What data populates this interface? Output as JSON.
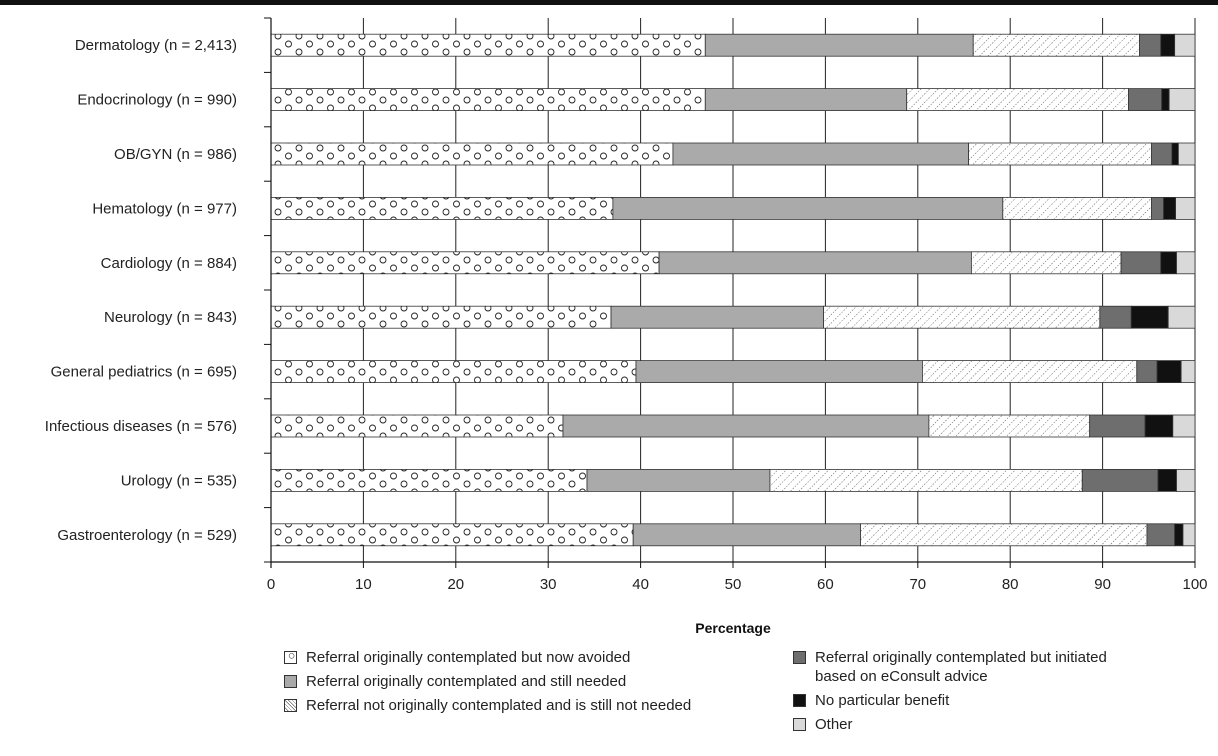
{
  "chart_data": {
    "type": "bar",
    "orientation": "horizontal",
    "stacked": true,
    "title": "",
    "xlabel": "Percentage",
    "ylabel": "",
    "xlim": [
      0,
      100
    ],
    "xticks": [
      0,
      10,
      20,
      30,
      40,
      50,
      60,
      70,
      80,
      90,
      100
    ],
    "grid": true,
    "legend_position": "bottom",
    "categories": [
      "Dermatology (n = 2,413)",
      "Endocrinology (n = 990)",
      "OB/GYN (n = 986)",
      "Hematology (n = 977)",
      "Cardiology (n = 884)",
      "Neurology (n = 843)",
      "General pediatrics (n = 695)",
      "Infectious diseases (n = 576)",
      "Urology (n = 535)",
      "Gastroenterology (n = 529)"
    ],
    "series": [
      {
        "name": "Referral originally contemplated but now avoided",
        "pattern": "circles",
        "color": "#ffffff",
        "values": [
          47.0,
          47.0,
          43.5,
          37.0,
          42.0,
          36.8,
          39.5,
          31.6,
          34.2,
          39.2
        ]
      },
      {
        "name": "Referral originally contemplated and still needed",
        "pattern": "solid",
        "color": "#aaaaaa",
        "values": [
          29.0,
          21.8,
          32.0,
          42.2,
          33.8,
          23.0,
          31.0,
          39.6,
          19.8,
          24.6
        ]
      },
      {
        "name": "Referral not originally contemplated and is still not needed",
        "pattern": "dots",
        "color": "#ffffff",
        "values": [
          18.0,
          24.0,
          19.8,
          16.1,
          16.2,
          29.9,
          23.2,
          17.4,
          33.8,
          31.0
        ]
      },
      {
        "name": "Referral originally contemplated but initiated\nbased on eConsult advice",
        "pattern": "solid",
        "color": "#6e6e6e",
        "values": [
          2.3,
          3.6,
          2.2,
          1.3,
          4.3,
          3.4,
          2.2,
          6.0,
          8.2,
          3.0
        ]
      },
      {
        "name": "No particular benefit",
        "pattern": "solid",
        "color": "#111111",
        "values": [
          1.5,
          0.8,
          0.7,
          1.3,
          1.7,
          4.0,
          2.6,
          3.0,
          2.0,
          0.9
        ]
      },
      {
        "name": "Other",
        "pattern": "solid",
        "color": "#d9d9d9",
        "values": [
          2.2,
          2.8,
          1.8,
          2.1,
          2.0,
          2.9,
          1.5,
          2.4,
          2.0,
          1.3
        ]
      }
    ]
  }
}
